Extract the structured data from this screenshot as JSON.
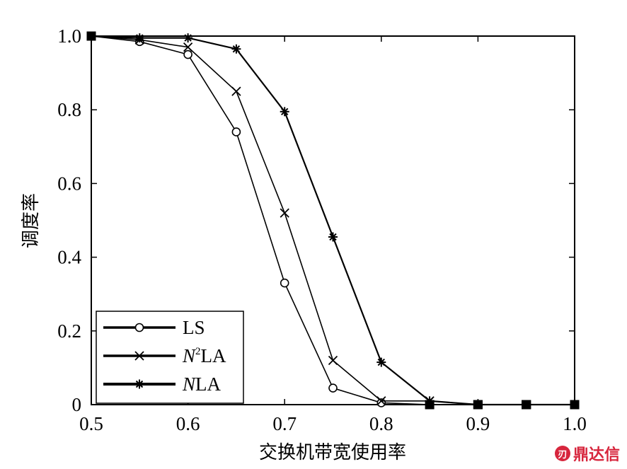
{
  "chart_data": {
    "type": "line",
    "xlabel": "交换机带宽使用率",
    "ylabel": "调度率",
    "xlim": [
      0.5,
      1.0
    ],
    "ylim": [
      0,
      1.0
    ],
    "xticks": [
      "0.5",
      "0.6",
      "0.7",
      "0.8",
      "0.9",
      "1.0"
    ],
    "yticks": [
      "0",
      "0.2",
      "0.4",
      "0.6",
      "0.8",
      "1.0"
    ],
    "legend_position": "bottom-left",
    "grid": false,
    "series": [
      {
        "name": "LS",
        "name_parts": {
          "italic": "",
          "sup": "",
          "rest": "LS"
        },
        "marker": "circle",
        "x": [
          0.5,
          0.55,
          0.6,
          0.65,
          0.7,
          0.75,
          0.8,
          0.85,
          0.9,
          0.95,
          1.0
        ],
        "y": [
          1.0,
          0.985,
          0.95,
          0.74,
          0.33,
          0.045,
          0.005,
          0.0,
          0.0,
          0.0,
          0.0
        ]
      },
      {
        "name": "N2LA",
        "name_parts": {
          "italic": "N",
          "sup": "2",
          "rest": "LA"
        },
        "marker": "x",
        "x": [
          0.5,
          0.55,
          0.6,
          0.65,
          0.7,
          0.75,
          0.8,
          0.85,
          0.9,
          0.95,
          1.0
        ],
        "y": [
          1.0,
          0.99,
          0.97,
          0.85,
          0.52,
          0.12,
          0.01,
          0.01,
          0.0,
          0.0,
          0.0
        ]
      },
      {
        "name": "NLA",
        "name_parts": {
          "italic": "N",
          "sup": "",
          "rest": "LA"
        },
        "marker": "star",
        "x": [
          0.5,
          0.55,
          0.6,
          0.65,
          0.7,
          0.75,
          0.8,
          0.85,
          0.9,
          0.95,
          1.0
        ],
        "y": [
          1.0,
          0.995,
          0.995,
          0.965,
          0.795,
          0.455,
          0.115,
          0.01,
          0.0,
          0.0,
          0.0
        ]
      }
    ]
  },
  "watermark": {
    "logo_glyph": "刃",
    "text": "鼎达信"
  }
}
